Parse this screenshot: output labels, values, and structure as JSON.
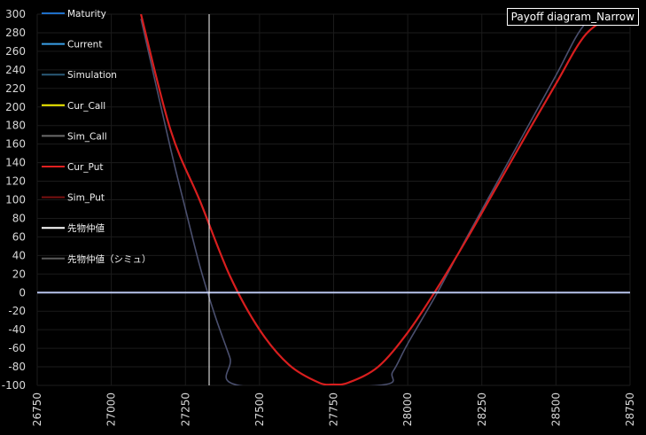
{
  "chart_data": {
    "type": "line",
    "title": "Payoff diagram_Narrow",
    "xlim": [
      26750,
      28750
    ],
    "ylim": [
      -100,
      300
    ],
    "x_ticks": [
      "26750",
      "27000",
      "27250",
      "27500",
      "27750",
      "28000",
      "28250",
      "28500",
      "28750"
    ],
    "y_ticks": [
      "300",
      "280",
      "260",
      "240",
      "220",
      "200",
      "180",
      "160",
      "140",
      "120",
      "100",
      "80",
      "60",
      "40",
      "20",
      "0",
      "-20",
      "-40",
      "-60",
      "-80",
      "-100"
    ],
    "grid": true,
    "legend_position": "top-left",
    "legend": [
      {
        "name": "Maturity",
        "color": "#1f6fc8"
      },
      {
        "name": "Current",
        "color": "#3aa0e8"
      },
      {
        "name": "Simulation",
        "color": "#2a5a78"
      },
      {
        "name": "Cur_Call",
        "color": "#f5f000"
      },
      {
        "name": "Sim_Call",
        "color": "#6b6b6b"
      },
      {
        "name": "Cur_Put",
        "color": "#e02020"
      },
      {
        "name": "Sim_Put",
        "color": "#7a1010"
      },
      {
        "name": "先物仲値",
        "color": "#ffffff"
      },
      {
        "name": "先物仲値（シミュ）",
        "color": "#5a5a5a"
      }
    ],
    "series": [
      {
        "name": "Current",
        "color": "#d81e1e",
        "x": [
          27100,
          27200,
          27300,
          27400,
          27500,
          27600,
          27700,
          27750,
          27800,
          27900,
          28000,
          28100,
          28200,
          28300,
          28400,
          28500,
          28600,
          28700
        ],
        "y": [
          300,
          175,
          98,
          18,
          -40,
          -78,
          -97,
          -99,
          -97,
          -80,
          -43,
          5,
          58,
          114,
          170,
          225,
          278,
          300
        ]
      },
      {
        "name": "Simulation",
        "color": "#4a4f6e",
        "x": [
          27100,
          27200,
          27250,
          27300,
          27350,
          27400,
          27430,
          27900,
          27950,
          28000,
          28100,
          28200,
          28300,
          28400,
          28500,
          28600,
          28700
        ],
        "y": [
          295,
          155,
          90,
          27,
          -25,
          -70,
          -100,
          -100,
          -85,
          -55,
          0,
          60,
          118,
          176,
          234,
          290,
          300
        ]
      }
    ],
    "vertical_lines": [
      {
        "name": "先物仲値",
        "x": 27330,
        "color": "#ffffff"
      }
    ],
    "horizontal_lines": [
      {
        "y": 0,
        "color": "#b8c4ec"
      }
    ]
  }
}
